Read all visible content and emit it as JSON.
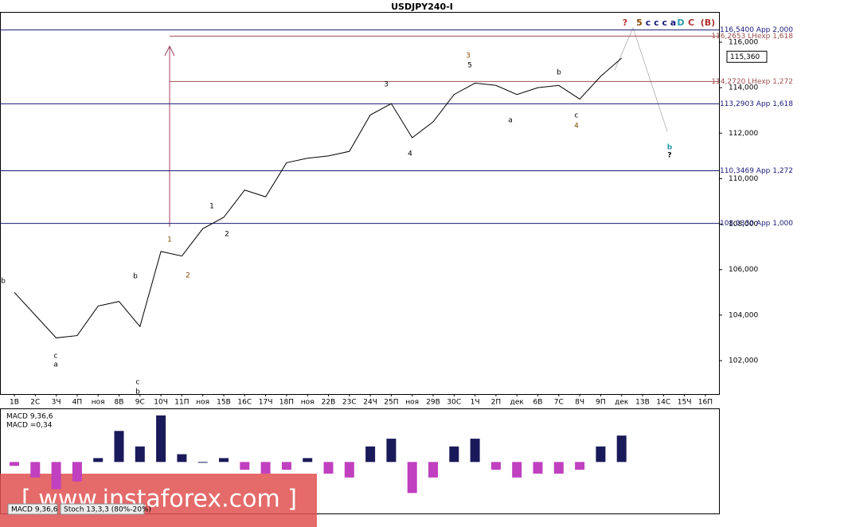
{
  "chart_data": {
    "type": "line",
    "title": "USDJPY240-I",
    "categories": [
      "1В",
      "2С",
      "3Ч",
      "4П",
      "ноя",
      "8В",
      "9С",
      "10Ч",
      "11П",
      "ноя",
      "15В",
      "16С",
      "17Ч",
      "18П",
      "ноя",
      "22В",
      "23С",
      "24Ч",
      "25П",
      "ноя",
      "29В",
      "30С",
      "1Ч",
      "2П",
      "дек",
      "6В",
      "7С",
      "8Ч",
      "9П",
      "дек",
      "13В",
      "14С",
      "15Ч",
      "16П"
    ],
    "series": [
      {
        "name": "USDJPY240-I",
        "color": "#000000",
        "values": [
          105.0,
          104.0,
          103.0,
          103.1,
          104.4,
          104.6,
          103.5,
          106.8,
          106.6,
          107.8,
          108.3,
          109.5,
          109.2,
          110.7,
          110.9,
          111.0,
          111.2,
          112.8,
          113.3,
          111.8,
          112.5,
          113.7,
          114.2,
          114.1,
          113.7,
          114.0,
          114.1,
          113.5,
          114.5,
          115.3,
          null,
          null,
          null,
          null
        ]
      }
    ],
    "ylim": [
      100.53,
      117.33
    ],
    "yticks": [
      {
        "value": 102,
        "label": "102,000"
      },
      {
        "value": 104,
        "label": "104,000"
      },
      {
        "value": 106,
        "label": "106,000"
      },
      {
        "value": 108,
        "label": "108,000"
      },
      {
        "value": 110,
        "label": "110,000"
      },
      {
        "value": 112,
        "label": "112,000"
      },
      {
        "value": 114,
        "label": "114,000"
      },
      {
        "value": 116,
        "label": "116,000"
      }
    ],
    "current_price": {
      "value": 115.36,
      "label": "115,360"
    },
    "levels": [
      {
        "value": 116.54,
        "label": "116,5400 App 2,000",
        "color": "#1a1a7a"
      },
      {
        "value": 116.2653,
        "label": "116,2653 LHexp 1,618",
        "color": "#a05050"
      },
      {
        "value": 114.272,
        "label": "114,2720 LHexp 1,272",
        "color": "#a05050"
      },
      {
        "value": 113.2903,
        "label": "113,2903 App 1,618",
        "color": "#1a1a7a"
      },
      {
        "value": 110.3469,
        "label": "110,3469 App 1,272",
        "color": "#1a1a7a"
      },
      {
        "value": 108.033,
        "label": "108,0330 App 1,000",
        "color": "#1a1a7a"
      }
    ],
    "annotations": [
      "?",
      "5",
      "c c c a",
      "D",
      "C",
      "(B)",
      "b",
      "c",
      "a",
      "1",
      "2",
      "1",
      "2",
      "b",
      "c",
      "b",
      "3",
      "3",
      "5",
      "4",
      "a",
      "b",
      "c",
      "4",
      "b",
      "?"
    ],
    "macd": {
      "type": "bar",
      "label": "MACD 9,36,6",
      "value_text": "MACD =0,34",
      "ylim": [
        -0.53,
        0.67
      ],
      "positive_color": "#1a1a5a",
      "negative_color": "#c040c0",
      "values": [
        -0.05,
        -0.2,
        -0.35,
        -0.25,
        0.05,
        0.4,
        0.2,
        0.6,
        0.1,
        0.0,
        0.05,
        -0.1,
        -0.15,
        -0.1,
        0.05,
        -0.15,
        -0.2,
        0.2,
        0.3,
        -0.4,
        -0.2,
        0.2,
        0.3,
        -0.1,
        -0.2,
        -0.15,
        -0.15,
        -0.1,
        0.2,
        0.34,
        null,
        null,
        null,
        null
      ]
    },
    "tabs": [
      "MACD 9,36,6",
      "Stoch 13,3,3 (80%-20%)"
    ],
    "watermark": "[ www.instaforex.com ]"
  }
}
